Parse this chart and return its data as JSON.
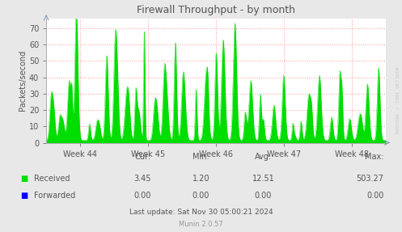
{
  "title": "Firewall Throughput - by month",
  "ylabel": "Packets/second",
  "bg_color": "#e8e8e8",
  "plot_bg_color": "#ffffff",
  "grid_color": "#ff9999",
  "x_labels": [
    "Week 44",
    "Week 45",
    "Week 46",
    "Week 47",
    "Week 48"
  ],
  "ylim": [
    0,
    76
  ],
  "yticks": [
    0,
    10,
    20,
    30,
    40,
    50,
    60,
    70
  ],
  "received_color": "#00dd00",
  "forwarded_color": "#0000ff",
  "title_color": "#555555",
  "label_color": "#555555",
  "tick_color": "#555555",
  "watermark": "RRDTOOL / TOBI OETIKER",
  "munin_version": "Munin 2.0.57",
  "stats_cur_received": "3.45",
  "stats_min_received": "1.20",
  "stats_avg_received": "12.51",
  "stats_max_received": "503.27",
  "stats_cur_forwarded": "0.00",
  "stats_min_forwarded": "0.00",
  "stats_avg_forwarded": "0.00",
  "stats_max_forwarded": "0.00",
  "last_update": "Last update: Sat Nov 30 05:00:21 2024",
  "n_points": 2000,
  "spikes_per_week": 7,
  "num_weeks": 5
}
